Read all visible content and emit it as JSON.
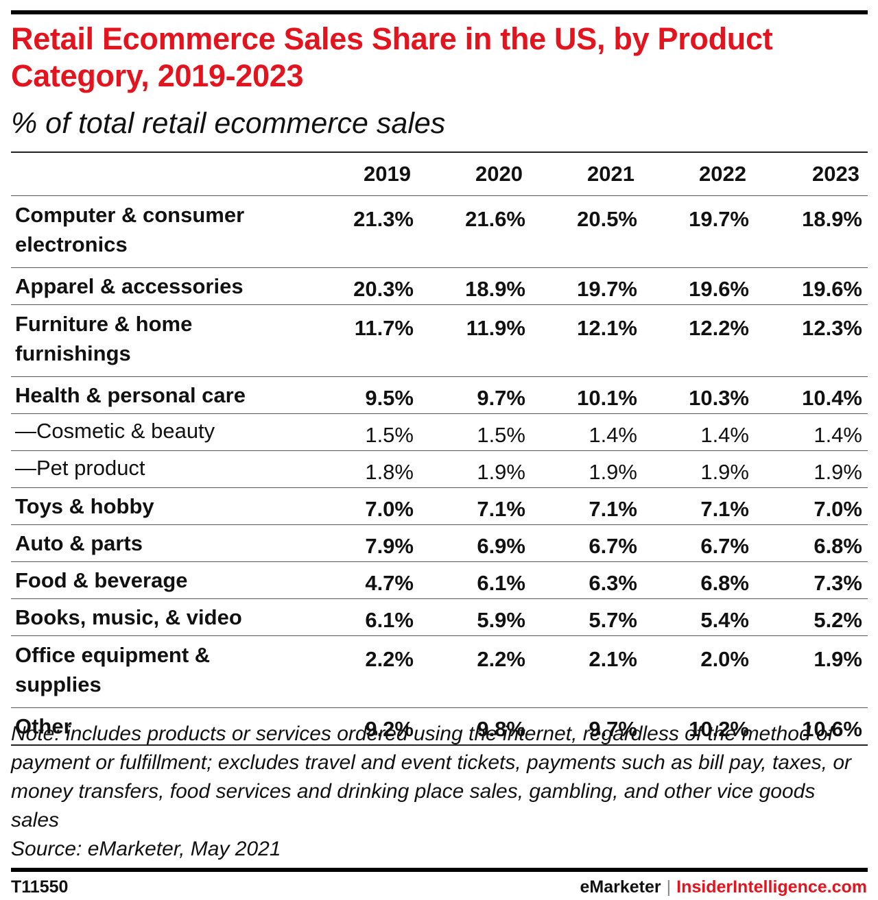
{
  "title": "Retail Ecommerce Sales Share in the US, by Product Category, 2019-2023",
  "subtitle": "% of total retail ecommerce sales",
  "chart_data": {
    "type": "table",
    "columns": [
      "2019",
      "2020",
      "2021",
      "2022",
      "2023"
    ],
    "rows": [
      {
        "label": "Computer & consumer electronics",
        "values": [
          "21.3%",
          "21.6%",
          "20.5%",
          "19.7%",
          "18.9%"
        ],
        "sub": false,
        "lines": 2
      },
      {
        "label": "Apparel & accessories",
        "values": [
          "20.3%",
          "18.9%",
          "19.7%",
          "19.6%",
          "19.6%"
        ],
        "sub": false,
        "lines": 1
      },
      {
        "label": "Furniture & home furnishings",
        "values": [
          "11.7%",
          "11.9%",
          "12.1%",
          "12.2%",
          "12.3%"
        ],
        "sub": false,
        "lines": 2
      },
      {
        "label": "Health & personal care",
        "values": [
          "9.5%",
          "9.7%",
          "10.1%",
          "10.3%",
          "10.4%"
        ],
        "sub": false,
        "lines": 1
      },
      {
        "label": "—Cosmetic & beauty",
        "values": [
          "1.5%",
          "1.5%",
          "1.4%",
          "1.4%",
          "1.4%"
        ],
        "sub": true,
        "lines": 1
      },
      {
        "label": "—Pet product",
        "values": [
          "1.8%",
          "1.9%",
          "1.9%",
          "1.9%",
          "1.9%"
        ],
        "sub": true,
        "lines": 1
      },
      {
        "label": "Toys & hobby",
        "values": [
          "7.0%",
          "7.1%",
          "7.1%",
          "7.1%",
          "7.0%"
        ],
        "sub": false,
        "lines": 1
      },
      {
        "label": "Auto & parts",
        "values": [
          "7.9%",
          "6.9%",
          "6.7%",
          "6.7%",
          "6.8%"
        ],
        "sub": false,
        "lines": 1
      },
      {
        "label": "Food & beverage",
        "values": [
          "4.7%",
          "6.1%",
          "6.3%",
          "6.8%",
          "7.3%"
        ],
        "sub": false,
        "lines": 1
      },
      {
        "label": "Books, music, & video",
        "values": [
          "6.1%",
          "5.9%",
          "5.7%",
          "5.4%",
          "5.2%"
        ],
        "sub": false,
        "lines": 1
      },
      {
        "label": "Office equipment & supplies",
        "values": [
          "2.2%",
          "2.2%",
          "2.1%",
          "2.0%",
          "1.9%"
        ],
        "sub": false,
        "lines": 2
      },
      {
        "label": "Other",
        "values": [
          "9.2%",
          "9.8%",
          "9.7%",
          "10.2%",
          "10.6%"
        ],
        "sub": false,
        "lines": 1
      }
    ]
  },
  "note": "Note: includes products or services ordered using the internet, regardless of the method of payment or fulfillment; excludes travel and event tickets, payments such as bill pay, taxes, or money transfers, food services and drinking place sales, gambling, and other vice goods sales",
  "source": "Source: eMarketer, May 2021",
  "footer": {
    "chart_id": "T11550",
    "brand_left": "eMarketer",
    "brand_sep": "|",
    "brand_right": "InsiderIntelligence.com"
  },
  "colors": {
    "accent": "#e4141e",
    "text": "#111111"
  }
}
